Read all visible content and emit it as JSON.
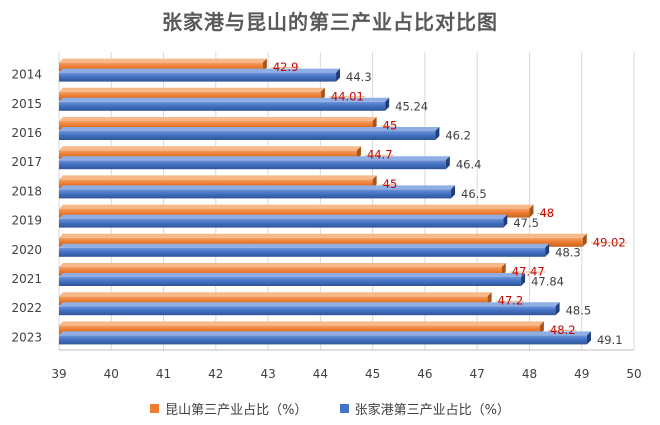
{
  "chart_data": {
    "type": "bar",
    "orientation": "horizontal",
    "title": "张家港与昆山的第三产业占比对比图",
    "categories": [
      "2014",
      "2015",
      "2016",
      "2017",
      "2018",
      "2019",
      "2020",
      "2021",
      "2022",
      "2023"
    ],
    "series": [
      {
        "name": "昆山第三产业占比（%）",
        "color": "#ED7D31",
        "label_color": "#C00000",
        "values": [
          42.9,
          44.01,
          45,
          44.7,
          45,
          48,
          49.02,
          47.47,
          47.2,
          48.2
        ],
        "labels": [
          "42.9",
          "44.01",
          "45",
          "44.7",
          "45",
          "48",
          "49.02",
          "47.47",
          "47.2",
          "48.2"
        ]
      },
      {
        "name": "张家港第三产业占比（%）",
        "color": "#4472C4",
        "label_color": "#404040",
        "values": [
          44.3,
          45.24,
          46.2,
          46.4,
          46.5,
          47.5,
          48.3,
          47.84,
          48.5,
          49.1
        ],
        "labels": [
          "44.3",
          "45.24",
          "46.2",
          "46.4",
          "46.5",
          "47.5",
          "48.3",
          "47.84",
          "48.5",
          "49.1"
        ]
      }
    ],
    "xlim": [
      39,
      50
    ],
    "x_ticks": [
      "39",
      "40",
      "41",
      "42",
      "43",
      "44",
      "45",
      "46",
      "47",
      "48",
      "49",
      "50"
    ],
    "grid": "vertical",
    "legend": "bottom"
  }
}
